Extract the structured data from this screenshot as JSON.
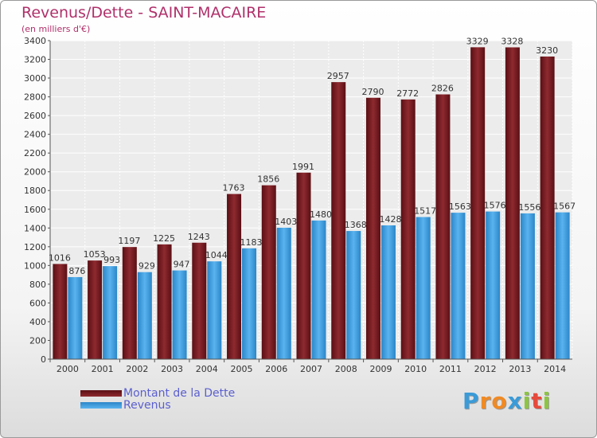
{
  "title": "Revenus/Dette - SAINT-MACAIRE",
  "subtitle": "(en milliers d'€)",
  "logo": {
    "letters": [
      "P",
      "r",
      "o",
      "x",
      "i",
      "t",
      "i"
    ],
    "colors": [
      "#3a9bd8",
      "#f08a24",
      "#f08a24",
      "#3a9bd8",
      "#8cc63f",
      "#e64a3c",
      "#8cc63f"
    ]
  },
  "chart_data": {
    "type": "bar",
    "categories": [
      "2000",
      "2001",
      "2002",
      "2003",
      "2004",
      "2005",
      "2006",
      "2007",
      "2008",
      "2009",
      "2010",
      "2011",
      "2012",
      "2013",
      "2014"
    ],
    "series": [
      {
        "name": "Montant de la Dette",
        "color": "#7d1f25",
        "values": [
          1016,
          1053,
          1197,
          1225,
          1243,
          1763,
          1856,
          1991,
          2957,
          2790,
          2772,
          2826,
          3329,
          3328,
          3230
        ]
      },
      {
        "name": "Revenus",
        "color": "#3f9fe0",
        "values": [
          876,
          993,
          929,
          947,
          1044,
          1183,
          1403,
          1480,
          1368,
          1428,
          1517,
          1563,
          1576,
          1556,
          1567
        ]
      }
    ],
    "ylim": [
      0,
      3400
    ],
    "yticks": [
      0,
      200,
      400,
      600,
      800,
      1000,
      1200,
      1400,
      1600,
      1800,
      2000,
      2200,
      2400,
      2600,
      2800,
      3000,
      3200,
      3400
    ],
    "grid": true,
    "legend": "bottom-left"
  }
}
